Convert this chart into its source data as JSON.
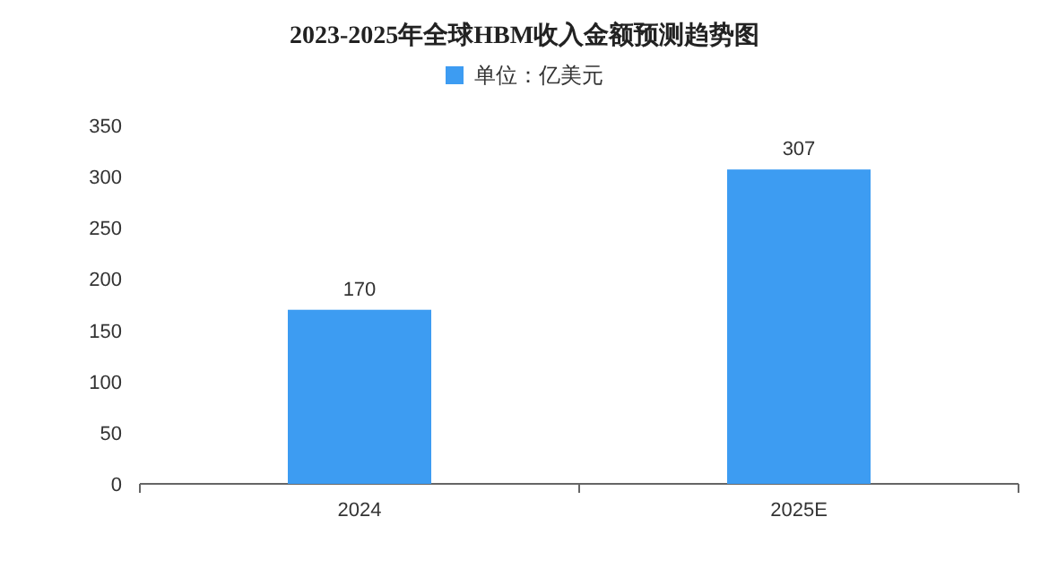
{
  "chart_data": {
    "type": "bar",
    "title": "2023-2025年全球HBM收入金额预测趋势图",
    "categories": [
      "2024",
      "2025E"
    ],
    "series": [
      {
        "name": "单位：亿美元",
        "color": "#3d9cf2",
        "values": [
          170,
          307
        ]
      }
    ],
    "ylim": [
      0,
      350
    ],
    "yticks": [
      0,
      50,
      100,
      150,
      200,
      250,
      300,
      350
    ],
    "data_labels": true,
    "legend": "top",
    "grid": false
  }
}
